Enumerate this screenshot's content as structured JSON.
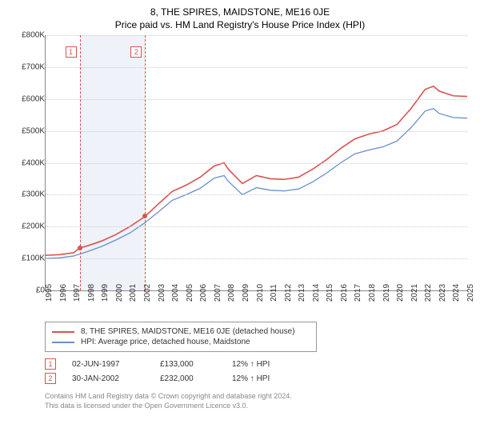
{
  "title": "8, THE SPIRES, MAIDSTONE, ME16 0JE",
  "subtitle": "Price paid vs. HM Land Registry's House Price Index (HPI)",
  "chart": {
    "type": "line",
    "background_color": "#ffffff",
    "grid_color": "#cccccc",
    "axis_color": "#888888",
    "y": {
      "min": 0,
      "max": 800000,
      "step": 100000,
      "ticks": [
        "£0",
        "£100K",
        "£200K",
        "£300K",
        "£400K",
        "£500K",
        "£600K",
        "£700K",
        "£800K"
      ]
    },
    "x": {
      "min": 1995,
      "max": 2025,
      "step": 1,
      "ticks": [
        "1995",
        "1996",
        "1997",
        "1998",
        "1999",
        "2000",
        "2001",
        "2002",
        "2003",
        "2004",
        "2005",
        "2006",
        "2007",
        "2008",
        "2009",
        "2010",
        "2011",
        "2012",
        "2013",
        "2014",
        "2015",
        "2016",
        "2017",
        "2018",
        "2019",
        "2020",
        "2021",
        "2022",
        "2023",
        "2024",
        "2025"
      ]
    },
    "shaded_band": {
      "x_start": 1997.42,
      "x_end": 2002.08,
      "color": "#e8edf5"
    },
    "series": [
      {
        "name": "8, THE SPIRES, MAIDSTONE, ME16 0JE (detached house)",
        "color": "#d9534f",
        "line_width": 1.6,
        "points": [
          [
            1995,
            110000
          ],
          [
            1996,
            112000
          ],
          [
            1997,
            118000
          ],
          [
            1997.42,
            133000
          ],
          [
            1998,
            140000
          ],
          [
            1999,
            155000
          ],
          [
            2000,
            175000
          ],
          [
            2001,
            200000
          ],
          [
            2002.08,
            232000
          ],
          [
            2003,
            270000
          ],
          [
            2004,
            310000
          ],
          [
            2005,
            330000
          ],
          [
            2006,
            355000
          ],
          [
            2007,
            390000
          ],
          [
            2007.7,
            400000
          ],
          [
            2008,
            380000
          ],
          [
            2009,
            335000
          ],
          [
            2010,
            360000
          ],
          [
            2011,
            350000
          ],
          [
            2012,
            348000
          ],
          [
            2013,
            355000
          ],
          [
            2014,
            380000
          ],
          [
            2015,
            410000
          ],
          [
            2016,
            445000
          ],
          [
            2017,
            475000
          ],
          [
            2018,
            490000
          ],
          [
            2019,
            500000
          ],
          [
            2020,
            520000
          ],
          [
            2021,
            570000
          ],
          [
            2022,
            630000
          ],
          [
            2022.6,
            640000
          ],
          [
            2023,
            625000
          ],
          [
            2024,
            610000
          ],
          [
            2025,
            608000
          ]
        ]
      },
      {
        "name": "HPI: Average price, detached house, Maidstone",
        "color": "#6a8fc7",
        "line_width": 1.3,
        "points": [
          [
            1995,
            100000
          ],
          [
            1996,
            102000
          ],
          [
            1997,
            108000
          ],
          [
            1998,
            122000
          ],
          [
            1999,
            138000
          ],
          [
            2000,
            158000
          ],
          [
            2001,
            180000
          ],
          [
            2002,
            210000
          ],
          [
            2003,
            245000
          ],
          [
            2004,
            282000
          ],
          [
            2005,
            300000
          ],
          [
            2006,
            320000
          ],
          [
            2007,
            352000
          ],
          [
            2007.7,
            360000
          ],
          [
            2008,
            342000
          ],
          [
            2009,
            300000
          ],
          [
            2010,
            322000
          ],
          [
            2011,
            314000
          ],
          [
            2012,
            312000
          ],
          [
            2013,
            318000
          ],
          [
            2014,
            340000
          ],
          [
            2015,
            368000
          ],
          [
            2016,
            400000
          ],
          [
            2017,
            428000
          ],
          [
            2018,
            440000
          ],
          [
            2019,
            450000
          ],
          [
            2020,
            468000
          ],
          [
            2021,
            510000
          ],
          [
            2022,
            562000
          ],
          [
            2022.6,
            570000
          ],
          [
            2023,
            555000
          ],
          [
            2024,
            542000
          ],
          [
            2025,
            540000
          ]
        ]
      }
    ],
    "markers": [
      {
        "num": "1",
        "x": 1997.42,
        "y": 133000
      },
      {
        "num": "2",
        "x": 2002.08,
        "y": 232000
      }
    ]
  },
  "legend": [
    {
      "color": "#d9534f",
      "label": "8, THE SPIRES, MAIDSTONE, ME16 0JE (detached house)"
    },
    {
      "color": "#6a8fc7",
      "label": "HPI: Average price, detached house, Maidstone"
    }
  ],
  "annotations": [
    {
      "num": "1",
      "date": "02-JUN-1997",
      "price": "£133,000",
      "hpi": "12% ↑ HPI"
    },
    {
      "num": "2",
      "date": "30-JAN-2002",
      "price": "£232,000",
      "hpi": "12% ↑ HPI"
    }
  ],
  "footer_line1": "Contains HM Land Registry data © Crown copyright and database right 2024.",
  "footer_line2": "This data is licensed under the Open Government Licence v3.0."
}
